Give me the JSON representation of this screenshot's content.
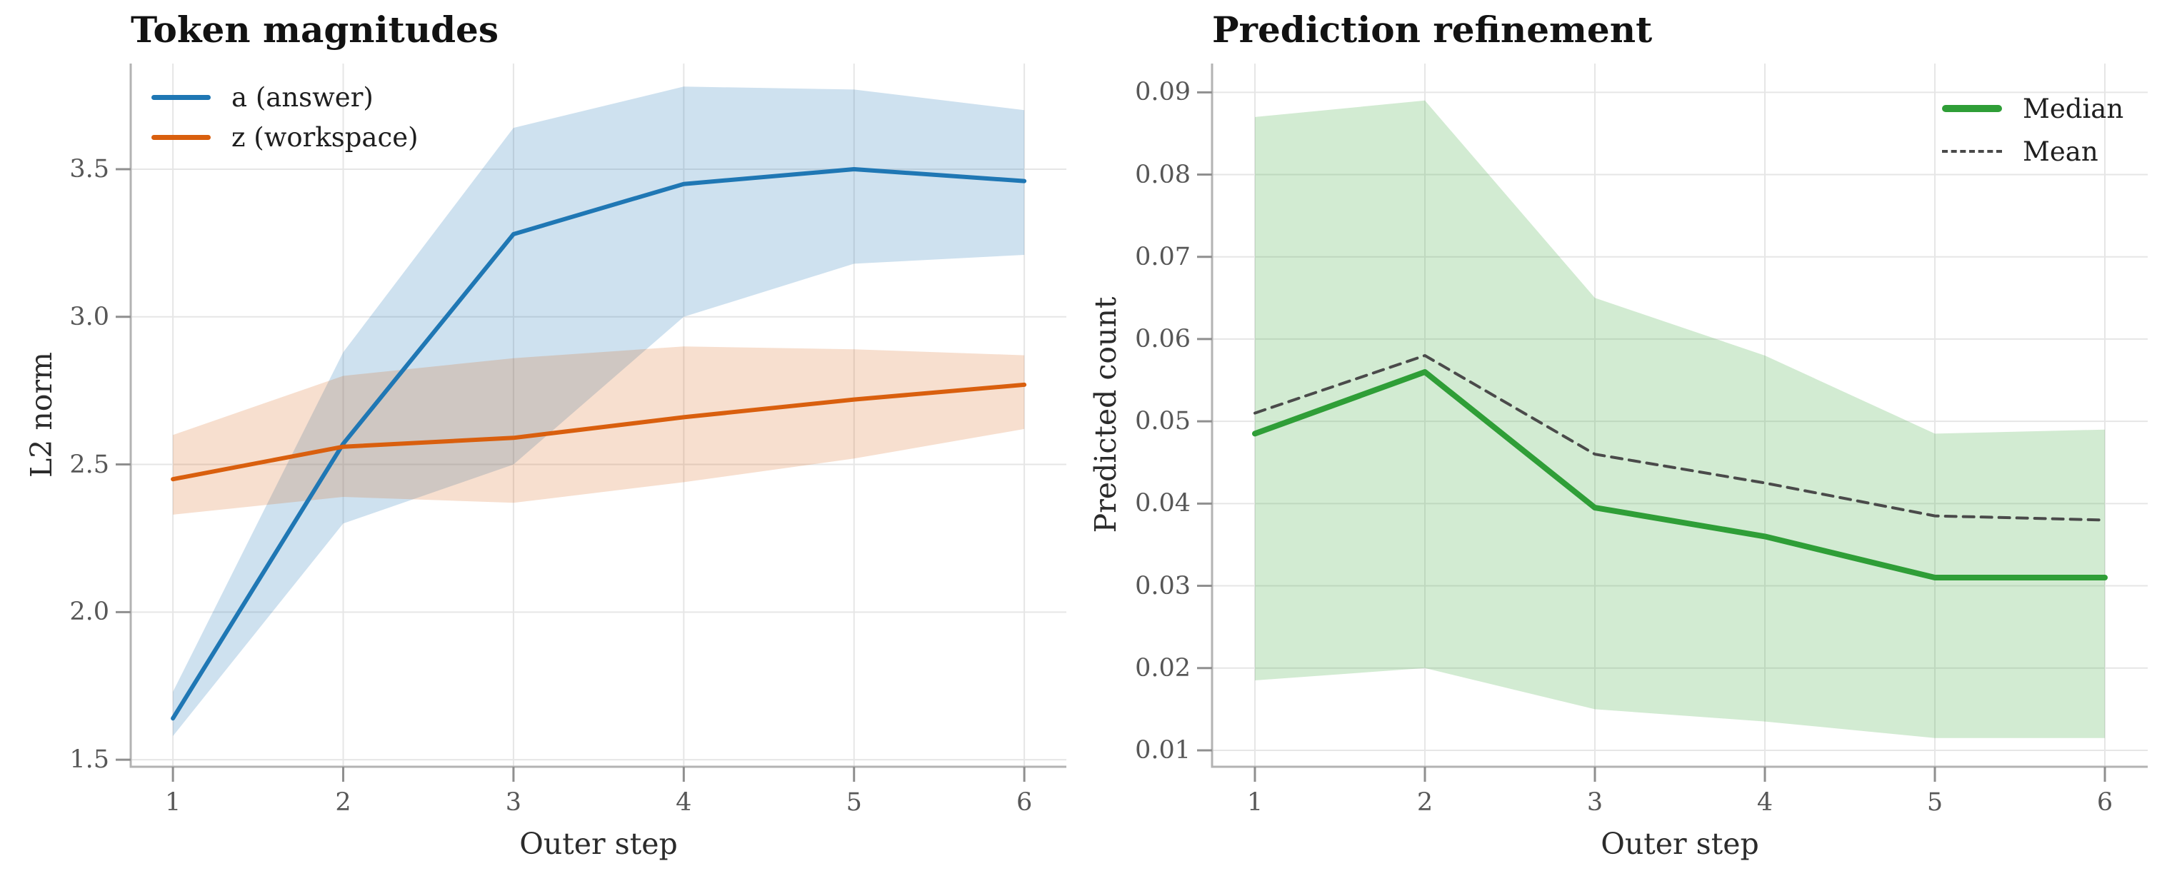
{
  "page": {
    "background": "#ffffff"
  },
  "style": {
    "grid_color": "#e6e6e6",
    "spine_color": "#b3b3b3",
    "tick_color": "#8f8f8f",
    "tick_label_color": "#575757",
    "axis_label_color": "#2b2b2b",
    "title_color": "#121212",
    "legend_text_color": "#1f1f1f"
  },
  "chart_data": [
    {
      "type": "line",
      "panel": "left",
      "title": "Token magnitudes",
      "xlabel": "Outer step",
      "ylabel": "L2 norm",
      "x": [
        1,
        2,
        3,
        4,
        5,
        6
      ],
      "xtick_labels": [
        "1",
        "2",
        "3",
        "4",
        "5",
        "6"
      ],
      "ytick_values": [
        1.5,
        2.0,
        2.5,
        3.0,
        3.5
      ],
      "ytick_labels": [
        "1.5",
        "2.0",
        "2.5",
        "3.0",
        "3.5"
      ],
      "xlim": [
        0.752,
        6.247
      ],
      "ylim": [
        1.476,
        3.858
      ],
      "grid": true,
      "legend_position": "upper-left",
      "series": [
        {
          "name": "a (answer)",
          "color": "#1f77b4",
          "line_width": 6,
          "dash": null,
          "values": [
            1.64,
            2.57,
            3.28,
            3.45,
            3.5,
            3.46
          ],
          "band_low": [
            1.58,
            2.3,
            2.5,
            3.0,
            3.18,
            3.21
          ],
          "band_high": [
            1.73,
            2.88,
            3.64,
            3.78,
            3.77,
            3.7
          ],
          "band_color": "rgba(31,119,180,0.22)"
        },
        {
          "name": "z (workspace)",
          "color": "#d95f0e",
          "line_width": 6,
          "dash": null,
          "values": [
            2.45,
            2.56,
            2.59,
            2.66,
            2.72,
            2.77
          ],
          "band_low": [
            2.33,
            2.39,
            2.37,
            2.44,
            2.52,
            2.62
          ],
          "band_high": [
            2.6,
            2.8,
            2.86,
            2.9,
            2.89,
            2.87
          ],
          "band_color": "rgba(217,95,14,0.20)"
        }
      ]
    },
    {
      "type": "line",
      "panel": "right",
      "title": "Prediction refinement",
      "xlabel": "Outer step",
      "ylabel": "Predicted count",
      "x": [
        1,
        2,
        3,
        4,
        5,
        6
      ],
      "xtick_labels": [
        "1",
        "2",
        "3",
        "4",
        "5",
        "6"
      ],
      "ytick_values": [
        0.01,
        0.02,
        0.03,
        0.04,
        0.05,
        0.06,
        0.07,
        0.08,
        0.09
      ],
      "ytick_labels": [
        "0.01",
        "0.02",
        "0.03",
        "0.04",
        "0.05",
        "0.06",
        "0.07",
        "0.08",
        "0.09"
      ],
      "xlim": [
        0.748,
        6.252
      ],
      "ylim": [
        0.008,
        0.0935
      ],
      "grid": true,
      "legend_position": "upper-right",
      "series": [
        {
          "name": "Median",
          "color": "#2f9e37",
          "line_width": 8,
          "dash": null,
          "values": [
            0.0485,
            0.056,
            0.0395,
            0.036,
            0.031,
            0.031
          ],
          "band_low": [
            0.0185,
            0.02,
            0.015,
            0.0135,
            0.0115,
            0.0115
          ],
          "band_high": [
            0.087,
            0.089,
            0.065,
            0.058,
            0.0485,
            0.049
          ],
          "band_color": "rgba(77,175,74,0.25)"
        },
        {
          "name": "Mean",
          "color": "#4a4a4a",
          "line_width": 4,
          "dash": "15 10",
          "values": [
            0.051,
            0.058,
            0.046,
            0.0425,
            0.0385,
            0.038
          ],
          "band_low": null,
          "band_high": null,
          "band_color": null
        }
      ]
    }
  ]
}
